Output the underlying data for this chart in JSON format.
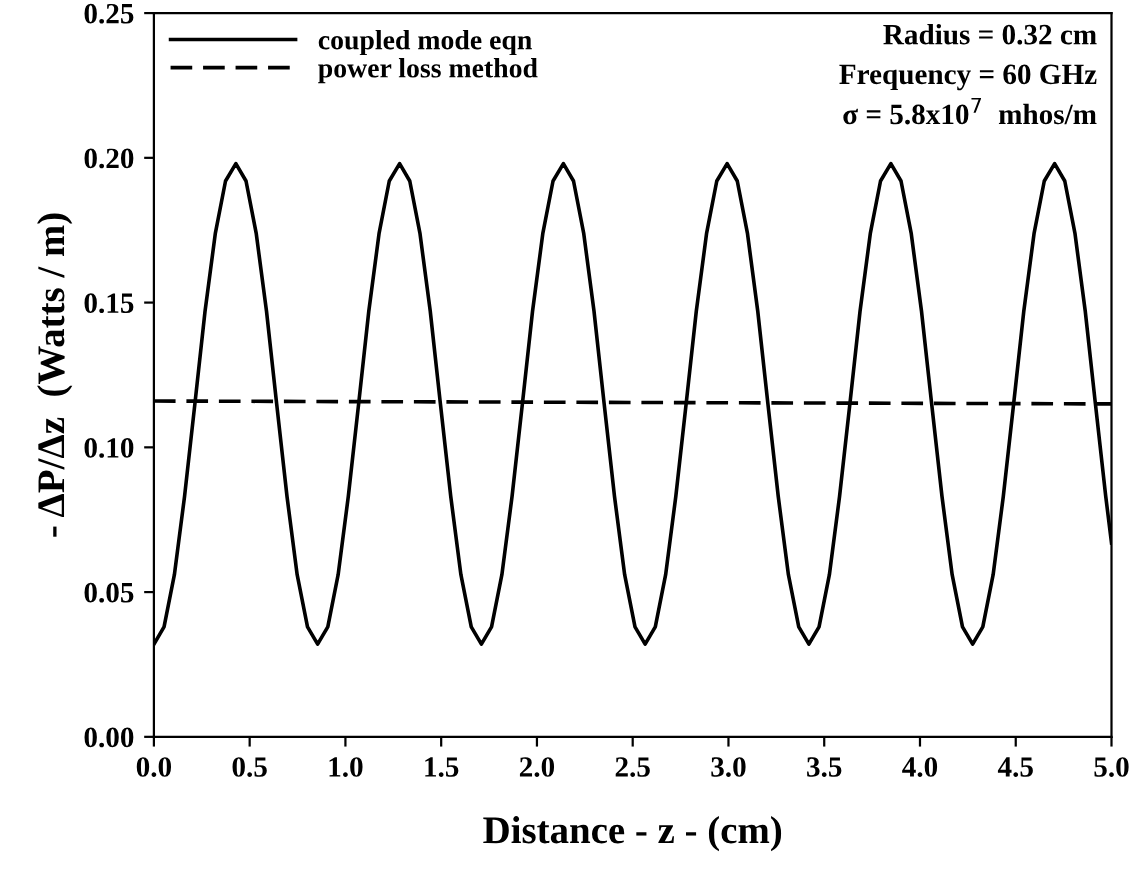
{
  "chart_data": {
    "type": "line",
    "xlabel": "Distance - z - (cm)",
    "ylabel": "- ΔP/Δz  (Watts / m)",
    "xlim": [
      0.0,
      5.0
    ],
    "xticks": [
      {
        "value": 0,
        "label": "0.0"
      },
      0.5,
      {
        "value": 1,
        "label": "1.0"
      },
      1.5,
      {
        "value": 2,
        "label": "2.0"
      },
      2.5,
      {
        "value": 3,
        "label": "3.0"
      },
      3.5,
      {
        "value": 4,
        "label": "4.0"
      },
      4.5,
      {
        "value": 5,
        "label": "5.0"
      }
    ],
    "ylim": [
      0.0,
      0.25
    ],
    "yticks": [
      {
        "value": 0,
        "label": "0.00"
      },
      0.05,
      {
        "value": 0.1,
        "label": "0.10"
      },
      0.15,
      {
        "value": 0.2,
        "label": "0.20"
      },
      0.25
    ],
    "grid": false,
    "legend": "top left",
    "annotations": [
      "Radius = 0.32 cm",
      "Frequency = 60 GHz",
      "σ = 5.8x10$^{7}$  mhos/m"
    ],
    "series": [
      {
        "name": "coupled mode eqn",
        "color": "#000000",
        "line_style": "solid",
        "x": [
          0,
          0.053,
          0.107,
          0.16,
          0.214,
          0.267,
          0.321,
          0.374,
          0.428,
          0.481,
          0.534,
          0.588,
          0.641,
          0.695,
          0.748,
          0.802,
          0.855,
          0.908,
          0.962,
          1.015,
          1.069,
          1.122,
          1.176,
          1.229,
          1.283,
          1.336,
          1.389,
          1.443,
          1.496,
          1.55,
          1.603,
          1.657,
          1.71,
          1.763,
          1.817,
          1.87,
          1.924,
          1.977,
          2.031,
          2.084,
          2.138,
          2.191,
          2.244,
          2.298,
          2.351,
          2.405,
          2.458,
          2.512,
          2.565,
          2.618,
          2.672,
          2.725,
          2.779,
          2.832,
          2.886,
          2.939,
          2.993,
          3.046,
          3.099,
          3.153,
          3.206,
          3.26,
          3.313,
          3.367,
          3.42,
          3.473,
          3.527,
          3.58,
          3.634,
          3.687,
          3.741,
          3.794,
          3.848,
          3.901,
          3.954,
          4.008,
          4.061,
          4.115,
          4.168,
          4.222,
          4.275,
          4.328,
          4.382,
          4.435,
          4.489,
          4.542,
          4.596,
          4.649,
          4.703,
          4.756,
          4.809,
          4.863,
          4.916,
          4.97,
          5.0
        ],
        "values": [
          0.032,
          0.038,
          0.056,
          0.083,
          0.115,
          0.147,
          0.174,
          0.192,
          0.198,
          0.192,
          0.174,
          0.147,
          0.115,
          0.083,
          0.056,
          0.038,
          0.032,
          0.038,
          0.056,
          0.083,
          0.115,
          0.147,
          0.174,
          0.192,
          0.198,
          0.192,
          0.174,
          0.147,
          0.115,
          0.083,
          0.056,
          0.038,
          0.032,
          0.038,
          0.056,
          0.083,
          0.115,
          0.147,
          0.174,
          0.192,
          0.198,
          0.192,
          0.174,
          0.147,
          0.115,
          0.083,
          0.056,
          0.038,
          0.032,
          0.038,
          0.056,
          0.083,
          0.115,
          0.147,
          0.174,
          0.192,
          0.198,
          0.192,
          0.174,
          0.147,
          0.115,
          0.083,
          0.056,
          0.038,
          0.032,
          0.038,
          0.056,
          0.083,
          0.115,
          0.147,
          0.174,
          0.192,
          0.198,
          0.192,
          0.174,
          0.147,
          0.115,
          0.083,
          0.056,
          0.038,
          0.032,
          0.038,
          0.056,
          0.083,
          0.115,
          0.147,
          0.174,
          0.192,
          0.198,
          0.192,
          0.174,
          0.147,
          0.115,
          0.083,
          0.067
        ]
      },
      {
        "name": "power loss method",
        "color": "#000000",
        "line_style": "dashed",
        "x": [
          0.0,
          5.0
        ],
        "values": [
          0.116,
          0.115
        ]
      }
    ]
  }
}
